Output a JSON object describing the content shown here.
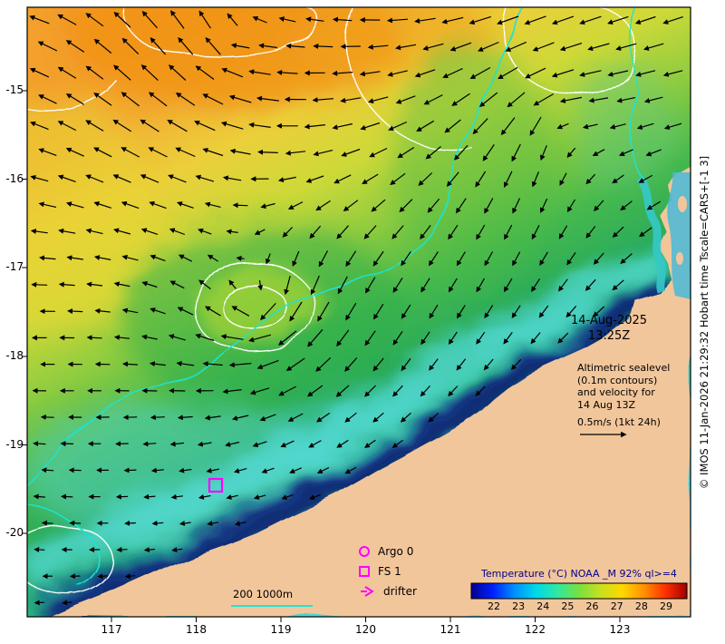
{
  "titles": {
    "copyright": "© IMOS 11-Jan-2026 21:29:32 Hobart time Tscale=CARS+[-1 3]"
  },
  "axes": {
    "y_ticks": [
      "-15",
      "-16",
      "-17",
      "-18",
      "-19",
      "-20"
    ],
    "x_ticks": [
      "117",
      "118",
      "119",
      "120",
      "121",
      "122",
      "123"
    ]
  },
  "info_panel": {
    "date": "14-Aug-2025",
    "time": "13:25Z",
    "annotation_lines": [
      "Altimetric sealevel",
      "(0.1m contours)",
      "and velocity for",
      "14 Aug 13Z",
      "0.5m/s (1kt 24h)"
    ]
  },
  "map_legend": {
    "items": [
      {
        "symbol": "circle",
        "label": "Argo 0"
      },
      {
        "symbol": "square",
        "label": "FS 1"
      },
      {
        "symbol": "arrow",
        "label": "drifter"
      }
    ],
    "isobath_label": "200 1000m"
  },
  "colorbar": {
    "title": "Temperature (°C) NOAA _M 92% ql>=4",
    "ticks": [
      "22",
      "23",
      "24",
      "25",
      "26",
      "27",
      "28",
      "29"
    ]
  },
  "colors": {
    "land": "#f2c69b",
    "marker_magenta": "#ff00ff",
    "isobath_cyan": "#1fe4d4",
    "sealevel_contour": "#ffffff",
    "colorbar_title": "#00008b"
  }
}
